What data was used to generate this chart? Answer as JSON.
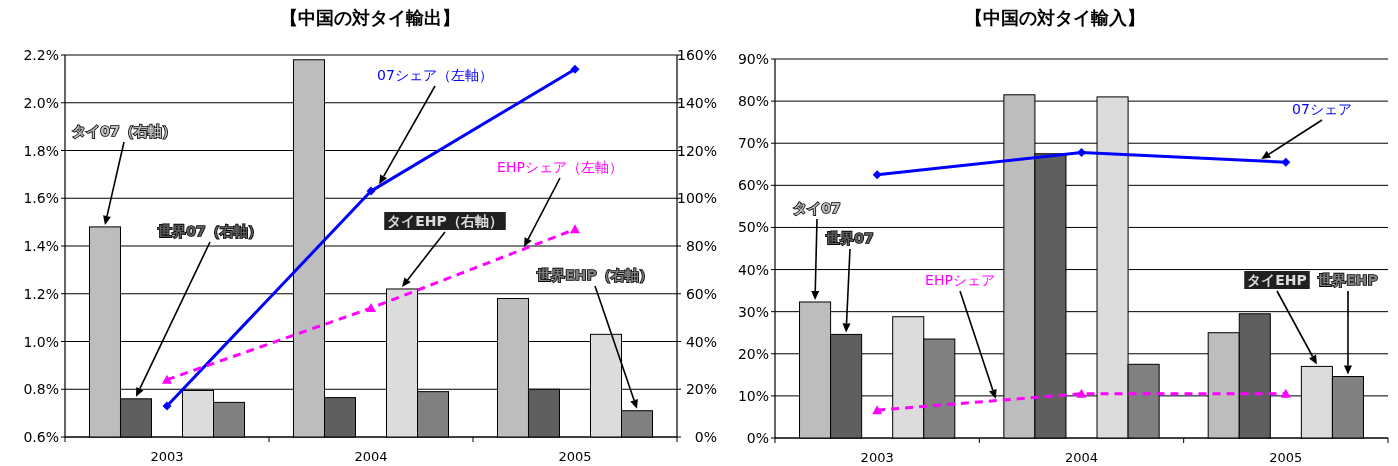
{
  "chart_data": [
    {
      "type": "bar",
      "title": "【中国の対タイ輸出】",
      "categories": [
        "2003",
        "2004",
        "2005"
      ],
      "ylim": [
        0.6,
        2.2
      ],
      "yticks": [
        {
          "value": 0.6,
          "label": "0.6%"
        },
        {
          "value": 0.8,
          "label": "0.8%"
        },
        {
          "value": 1.0,
          "label": "1.0%"
        },
        {
          "value": 1.2,
          "label": "1.2%"
        },
        {
          "value": 1.4,
          "label": "1.4%"
        },
        {
          "value": 1.6,
          "label": "1.6%"
        },
        {
          "value": 1.8,
          "label": "1.8%"
        },
        {
          "value": 2.0,
          "label": "2.0%"
        },
        {
          "value": 2.2,
          "label": "2.2%"
        }
      ],
      "y2lim": [
        0,
        160
      ],
      "y2ticks": [
        {
          "value": 0,
          "label": "0%"
        },
        {
          "value": 20,
          "label": "20%"
        },
        {
          "value": 40,
          "label": "40%"
        },
        {
          "value": 60,
          "label": "60%"
        },
        {
          "value": 80,
          "label": "80%"
        },
        {
          "value": 100,
          "label": "100%"
        },
        {
          "value": 120,
          "label": "120%"
        },
        {
          "value": 140,
          "label": "140%"
        },
        {
          "value": 160,
          "label": "160%"
        }
      ],
      "grid": "y",
      "legend": false,
      "series": [
        {
          "name": "タイ07（右軸）",
          "axis": "y2",
          "color": "#bdbdbd",
          "values": [
            88,
            158,
            58
          ]
        },
        {
          "name": "世界07（右軸）",
          "axis": "y2",
          "color": "#5f5f5f",
          "values": [
            16,
            16.5,
            20
          ]
        },
        {
          "name": "タイEHP（右軸）",
          "axis": "y2",
          "color": "#dcdcdc",
          "values": [
            19.5,
            62,
            43
          ]
        },
        {
          "name": "世界EHP（右軸）",
          "axis": "y2",
          "color": "#808080",
          "values": [
            14.5,
            19,
            11
          ]
        },
        {
          "name": "07シェア（左軸）",
          "type": "line",
          "axis": "y",
          "color": "#0000ff",
          "marker": "diamond",
          "line_style": "solid",
          "values": [
            0.73,
            1.63,
            2.14
          ]
        },
        {
          "name": "EHPシェア（左軸）",
          "type": "line",
          "axis": "y",
          "color": "#ff00ff",
          "marker": "triangle",
          "line_style": "dashed",
          "values": [
            0.84,
            1.14,
            1.47
          ]
        }
      ]
    },
    {
      "type": "bar",
      "title": "【中国の対タイ輸入】",
      "categories": [
        "2003",
        "2004",
        "2005"
      ],
      "ylim": [
        0,
        90
      ],
      "yticks": [
        {
          "value": 0,
          "label": "0%"
        },
        {
          "value": 10,
          "label": "10%"
        },
        {
          "value": 20,
          "label": "20%"
        },
        {
          "value": 30,
          "label": "30%"
        },
        {
          "value": 40,
          "label": "40%"
        },
        {
          "value": 50,
          "label": "50%"
        },
        {
          "value": 60,
          "label": "60%"
        },
        {
          "value": 70,
          "label": "70%"
        },
        {
          "value": 80,
          "label": "80%"
        },
        {
          "value": 90,
          "label": "90%"
        }
      ],
      "grid": "y",
      "legend": false,
      "series": [
        {
          "name": "タイ07",
          "color": "#bdbdbd",
          "values": [
            32.3,
            81.5,
            25
          ]
        },
        {
          "name": "世界07",
          "color": "#5f5f5f",
          "values": [
            24.6,
            67.5,
            29.5
          ]
        },
        {
          "name": "タイEHP",
          "color": "#dcdcdc",
          "values": [
            28.8,
            81,
            17
          ]
        },
        {
          "name": "世界EHP",
          "color": "#808080",
          "values": [
            23.5,
            17.5,
            14.6
          ]
        },
        {
          "name": "07シェア",
          "type": "line",
          "color": "#0000ff",
          "marker": "diamond",
          "line_style": "solid",
          "values": [
            62.5,
            67.8,
            65.5
          ]
        },
        {
          "name": "EHPシェア",
          "type": "line",
          "color": "#ff00ff",
          "marker": "triangle",
          "line_style": "dashed",
          "values": [
            6.6,
            10.5,
            10.5
          ]
        }
      ]
    }
  ]
}
